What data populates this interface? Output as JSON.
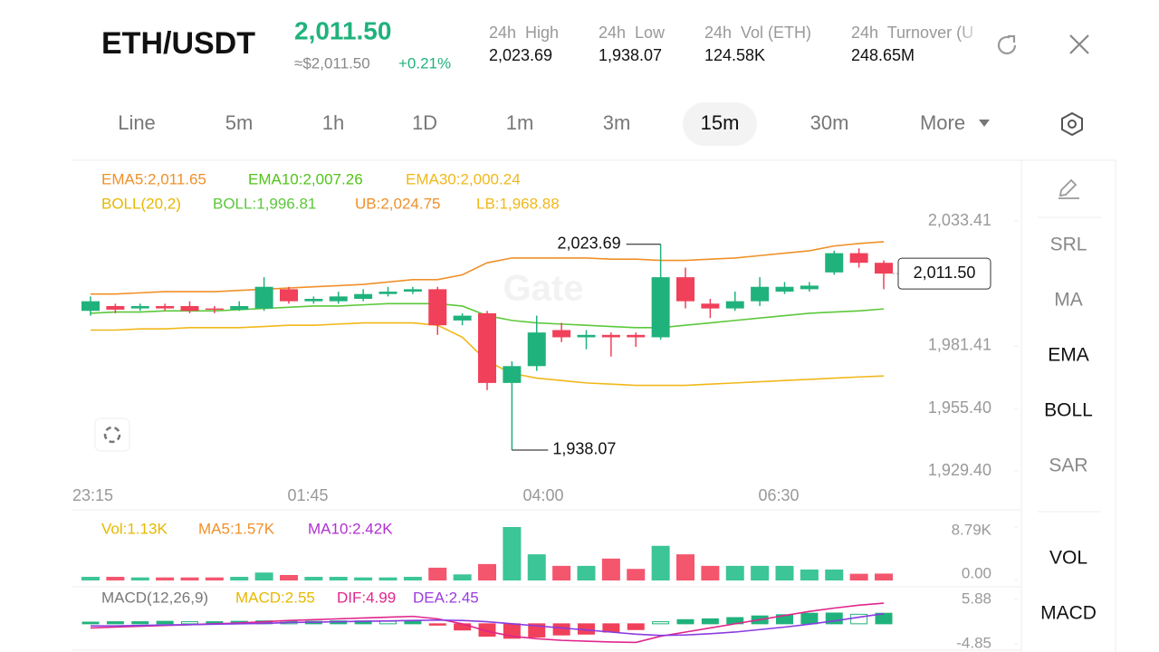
{
  "header": {
    "pair": "ETH/USDT",
    "price": "2,011.50",
    "approx": "≈$2,011.50",
    "change": "+0.21%",
    "stats": [
      {
        "label": "24h  High",
        "value": "2,023.69"
      },
      {
        "label": "24h  Low",
        "value": "1,938.07"
      },
      {
        "label": "24h  Vol (ETH)",
        "value": "124.58K"
      },
      {
        "label": "24h  Turnover (U",
        "value": "248.65M"
      }
    ]
  },
  "tabs": {
    "items": [
      "Line",
      "5m",
      "1h",
      "1D",
      "1m",
      "3m",
      "15m",
      "30m",
      "More"
    ],
    "active": 6
  },
  "indicators": {
    "ema": [
      "EMA5:2,011.65",
      "EMA10:2,007.26",
      "EMA30:2,000.24"
    ],
    "boll": [
      "BOLL(20,2)",
      "BOLL:1,996.81",
      "UB:2,024.75",
      "LB:1,968.88"
    ]
  },
  "side_menu": [
    "SRL",
    "MA",
    "EMA",
    "BOLL",
    "SAR",
    "VOL",
    "MACD"
  ],
  "price_chart": {
    "type": "candlestick",
    "watermark": "Gate",
    "ylim": [
      1929.4,
      2033.41
    ],
    "yticks": [
      {
        "value": 2033.41,
        "label": "2,033.41"
      },
      {
        "value": 1981.41,
        "label": "1,981.41"
      },
      {
        "value": 1955.4,
        "label": "1,955.40"
      },
      {
        "value": 1929.4,
        "label": "1,929.40"
      }
    ],
    "xlabels": [
      "23:15",
      "01:45",
      "04:00",
      "06:30"
    ],
    "up_color": "#20b27c",
    "down_color": "#f0405a",
    "open": [
      1996,
      1998,
      1997,
      1998,
      1998,
      1997,
      1996.5,
      1997,
      2005,
      2000,
      2000,
      2001,
      2003,
      2004,
      2005,
      1992,
      1995,
      1966,
      1973,
      1988,
      1985,
      1986,
      1986,
      1985,
      2010,
      1999,
      1997,
      2000,
      2004,
      2005,
      2012,
      2020,
      2016
    ],
    "high": [
      2002,
      1999,
      1999,
      1999,
      2000,
      1998,
      2000,
      2010,
      2006,
      2002,
      2004,
      2005,
      2006,
      2006,
      2006,
      1995,
      1996,
      1975,
      1994,
      1991,
      1988,
      1987,
      1987,
      2023.69,
      2014,
      2001,
      2004,
      2010,
      2008,
      2008,
      2021,
      2022,
      2017
    ],
    "low": [
      1994,
      1995,
      1996,
      1996,
      1995,
      1995,
      1996,
      1996,
      1999,
      1999,
      1999,
      2000,
      2002,
      2003,
      1986,
      1990,
      1963,
      1938.07,
      1971,
      1983,
      1980,
      1977,
      1981,
      1984,
      1997,
      1993,
      1996,
      1998,
      2003,
      2004,
      2011,
      2014,
      2005
    ],
    "close": [
      2000,
      1996.5,
      1998,
      1997,
      1996,
      1996.5,
      1998,
      2006,
      2000,
      2001,
      2002,
      2003,
      2004,
      2005,
      1990,
      1994,
      1966,
      1973,
      1987,
      1985,
      1986,
      1985,
      1985,
      2010,
      2000,
      1997,
      2000,
      2006,
      2006,
      2006.5,
      2020,
      2016,
      2011.5
    ],
    "high_label": "2,023.69",
    "low_label": "1,938.07",
    "last_label": "2,011.50",
    "series": [
      {
        "name": "UB",
        "color": "#f0902a",
        "values": [
          2003,
          2003,
          2003.5,
          2004,
          2004,
          2004,
          2004.5,
          2005,
          2005.5,
          2006,
          2006.5,
          2007,
          2008,
          2009,
          2009,
          2011,
          2016,
          2018,
          2018,
          2018,
          2018,
          2017.5,
          2017.5,
          2017,
          2017,
          2017.5,
          2018,
          2019,
          2020,
          2021,
          2023,
          2024,
          2024.75
        ]
      },
      {
        "name": "BOLL",
        "color": "#5cc83a",
        "values": [
          1995,
          1995.5,
          1995.5,
          1996,
          1996,
          1996,
          1996.5,
          1997,
          1997.5,
          1998,
          1998,
          1998.5,
          1999,
          1999,
          1999,
          1998,
          1994,
          1992,
          1991,
          1990.5,
          1990,
          1989.5,
          1989,
          1989,
          1990,
          1991,
          1992,
          1993,
          1994,
          1995,
          1995.5,
          1996,
          1996.81
        ]
      },
      {
        "name": "LB",
        "color": "#f0b81a",
        "values": [
          1988,
          1988,
          1988.5,
          1988.5,
          1989,
          1989,
          1989,
          1989.5,
          1990,
          1990,
          1990.5,
          1991,
          1991,
          1991,
          1990,
          1985,
          1975,
          1970,
          1968,
          1967,
          1966,
          1965.5,
          1965,
          1965,
          1965,
          1965.5,
          1966,
          1966.5,
          1967,
          1967.5,
          1968,
          1968.5,
          1968.88
        ]
      }
    ]
  },
  "volume_chart": {
    "type": "bar",
    "labels": [
      "Vol:1.13K",
      "MA5:1.57K",
      "MA10:2.42K"
    ],
    "ylim": [
      0,
      8.79
    ],
    "yticks": [
      {
        "value": 8.79,
        "label": "8.79K"
      },
      {
        "value": 0,
        "label": "0.00"
      }
    ],
    "values": [
      0.6,
      0.6,
      0.5,
      0.5,
      0.5,
      0.5,
      0.6,
      1.3,
      0.9,
      0.6,
      0.6,
      0.5,
      0.5,
      0.6,
      2.1,
      1.0,
      2.7,
      8.79,
      4.3,
      2.4,
      2.4,
      3.6,
      1.9,
      5.7,
      4.3,
      2.4,
      2.4,
      2.4,
      2.4,
      1.8,
      1.8,
      1.1,
      1.13
    ]
  },
  "macd_chart": {
    "type": "bar",
    "labels": [
      "MACD(12,26,9)",
      "MACD:2.55",
      "DIF:4.99",
      "DEA:2.45"
    ],
    "ylim": [
      -4.85,
      5.88
    ],
    "yticks": [
      5.88,
      -4.85
    ],
    "values": [
      0.4,
      0.5,
      0.5,
      0.6,
      0.5,
      0.5,
      0.6,
      0.7,
      0.6,
      0.6,
      0.7,
      0.7,
      0.6,
      0.7,
      -0.3,
      -1.5,
      -3.0,
      -3.5,
      -3.2,
      -2.7,
      -2.5,
      -2.0,
      -1.4,
      0.5,
      1.0,
      1.2,
      1.5,
      1.9,
      2.2,
      2.55,
      2.6,
      2.3,
      2.55
    ],
    "series": [
      {
        "name": "DIF",
        "color": "#e0268c",
        "values": [
          -1,
          -0.8,
          -0.6,
          -0.4,
          -0.2,
          0,
          0.2,
          0.5,
          0.8,
          1,
          1.2,
          1.4,
          1.6,
          1.8,
          1.2,
          0,
          -1.8,
          -3,
          -3.6,
          -4,
          -4.2,
          -4.4,
          -4.5,
          -3,
          -2,
          -1,
          0,
          1,
          2,
          3,
          3.8,
          4.5,
          4.99
        ]
      },
      {
        "name": "DEA",
        "color": "#8a3be0",
        "values": [
          -0.5,
          -0.5,
          -0.4,
          -0.3,
          -0.2,
          -0.1,
          0,
          0.1,
          0.3,
          0.4,
          0.5,
          0.6,
          0.7,
          0.8,
          0.9,
          0.8,
          0.5,
          0,
          -0.5,
          -1,
          -1.5,
          -2,
          -2.5,
          -2.8,
          -2.7,
          -2.4,
          -2,
          -1.4,
          -0.8,
          -0.1,
          0.7,
          1.6,
          2.45
        ]
      }
    ]
  }
}
